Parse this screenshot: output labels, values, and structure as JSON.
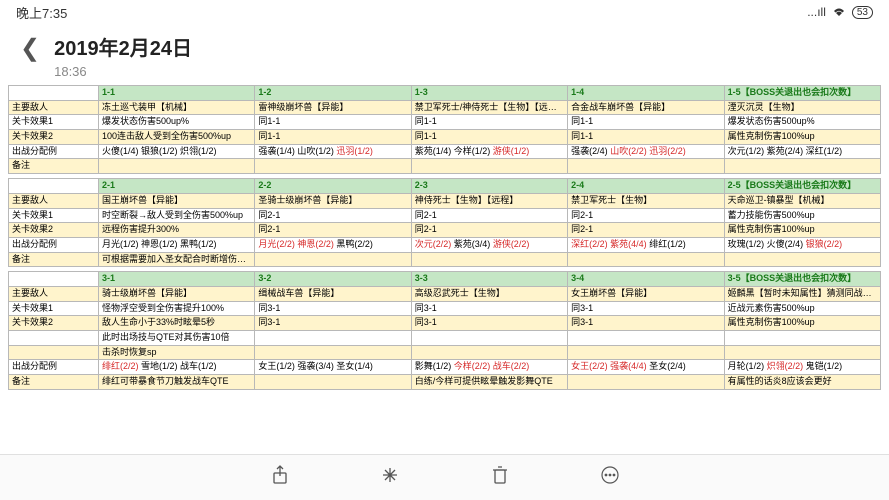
{
  "status": {
    "time": "晚上7:35",
    "signal": "...ıll",
    "wifi": "⌔",
    "battery": "53"
  },
  "header": {
    "title": "2019年2月24日",
    "subtitle": "18:36"
  },
  "labels": {
    "enemy": "主要敌人",
    "effect1": "关卡效果1",
    "effect2": "关卡效果2",
    "alloc": "出战分配例",
    "note": "备注"
  },
  "sections": [
    {
      "cols": [
        "1-1",
        "1-2",
        "1-3",
        "1-4",
        "1-5【BOSS关退出也会扣次数】"
      ],
      "rows": [
        {
          "k": "enemy",
          "style": "row-yellow",
          "cells": [
            {
              "t": "冻土巡弋装甲【机械】"
            },
            {
              "t": "雷神级崩坏兽【异能】"
            },
            {
              "t": "禁卫军死士/神侍死士【生物】【远程】"
            },
            {
              "t": "合金战车崩坏兽【异能】"
            },
            {
              "t": "湮灭沉灵【生物】"
            }
          ]
        },
        {
          "k": "effect1",
          "style": "row-pale",
          "cells": [
            {
              "t": "爆发状态伤害500up%"
            },
            {
              "t": "同1-1"
            },
            {
              "t": "同1-1"
            },
            {
              "t": "同1-1"
            },
            {
              "t": "爆发状态伤害500up%"
            }
          ]
        },
        {
          "k": "effect2",
          "style": "row-yellow",
          "cells": [
            {
              "t": "100连击敌人受到全伤害500%up"
            },
            {
              "t": "同1-1"
            },
            {
              "t": "同1-1"
            },
            {
              "t": "同1-1"
            },
            {
              "t": "属性克制伤害100%up"
            }
          ]
        },
        {
          "k": "alloc",
          "style": "row-pale",
          "cells": [
            {
              "t": "火傻(1/4) 银狼(1/2) 炽翎(1/2)"
            },
            {
              "frags": [
                {
                  "t": "强袭(1/4) 山吹(1/2) "
                },
                {
                  "t": "迅羽(1/2)",
                  "c": "txt-red"
                }
              ]
            },
            {
              "frags": [
                {
                  "t": "紫苑(1/4) 今样(1/2) "
                },
                {
                  "t": "游侠(1/2)",
                  "c": "txt-red"
                }
              ]
            },
            {
              "frags": [
                {
                  "t": "强袭(2/4) "
                },
                {
                  "t": "山吹(2/2) 迅羽(2/2)",
                  "c": "txt-red"
                }
              ]
            },
            {
              "t": "次元(1/2) 紫苑(2/4) 深红(1/2)"
            }
          ]
        },
        {
          "k": "note",
          "style": "row-yellow",
          "cells": [
            {
              "t": ""
            },
            {
              "t": ""
            },
            {
              "t": ""
            },
            {
              "t": ""
            },
            {
              "t": ""
            }
          ]
        }
      ]
    },
    {
      "cols": [
        "2-1",
        "2-2",
        "2-3",
        "2-4",
        "2-5【BOSS关退出也会扣次数】"
      ],
      "rows": [
        {
          "k": "enemy",
          "style": "row-yellow",
          "cells": [
            {
              "t": "国王崩坏兽【异能】"
            },
            {
              "t": "圣骑士级崩坏兽【异能】"
            },
            {
              "t": "神侍死士【生物】【远程】"
            },
            {
              "t": "禁卫军死士【生物】"
            },
            {
              "t": "天命巡卫-镇暴型【机械】"
            }
          ]
        },
        {
          "k": "effect1",
          "style": "row-pale",
          "cells": [
            {
              "t": "时空断裂→敌人受到全伤害500%up"
            },
            {
              "t": "同2-1"
            },
            {
              "t": "同2-1"
            },
            {
              "t": "同2-1"
            },
            {
              "t": "蓄力技能伤害500%up"
            }
          ]
        },
        {
          "k": "effect2",
          "style": "row-yellow",
          "cells": [
            {
              "t": "远程伤害提升300%"
            },
            {
              "t": "同2-1"
            },
            {
              "t": "同2-1"
            },
            {
              "t": "同2-1"
            },
            {
              "t": "属性克制伤害100%up"
            }
          ]
        },
        {
          "k": "alloc",
          "style": "row-pale",
          "cells": [
            {
              "t": "月光(1/2) 神恩(1/2) 黑鸭(1/2)"
            },
            {
              "frags": [
                {
                  "t": "月光(2/2) 神恩(2/2) ",
                  "c": "txt-red"
                },
                {
                  "t": "黑鸭(2/2)"
                }
              ]
            },
            {
              "frags": [
                {
                  "t": "次元(2/2)",
                  "c": "txt-red"
                },
                {
                  "t": " 紫苑(3/4) "
                },
                {
                  "t": "游侠(2/2)",
                  "c": "txt-red"
                }
              ]
            },
            {
              "frags": [
                {
                  "t": "深红(2/2) 紫苑(4/4) ",
                  "c": "txt-red"
                },
                {
                  "t": "绯红(1/2)"
                }
              ]
            },
            {
              "frags": [
                {
                  "t": "玫瑰(1/2) 火傻(2/4) "
                },
                {
                  "t": "银狼(2/2)",
                  "c": "txt-red"
                }
              ]
            }
          ]
        },
        {
          "k": "note",
          "style": "row-yellow",
          "cells": [
            {
              "t": "可根据需要加入圣女配合时断增伤效果"
            },
            {
              "t": ""
            },
            {
              "t": ""
            },
            {
              "t": ""
            },
            {
              "t": ""
            }
          ]
        }
      ]
    },
    {
      "cols": [
        "3-1",
        "3-2",
        "3-3",
        "3-4",
        "3-5【BOSS关退出也会扣次数】"
      ],
      "rows": [
        {
          "k": "enemy",
          "style": "row-yellow",
          "cells": [
            {
              "t": "骑士级崩坏兽【异能】"
            },
            {
              "t": "缉械战车兽【异能】"
            },
            {
              "t": "高级忍武死士【生物】"
            },
            {
              "t": "女王崩坏兽【异能】"
            },
            {
              "t": "姬麟黑【暂时未知属性】猜测同战场机制"
            }
          ]
        },
        {
          "k": "effect1",
          "style": "row-pale",
          "cells": [
            {
              "t": "怪物浮空受到全伤害提升100%"
            },
            {
              "t": "同3-1"
            },
            {
              "t": "同3-1"
            },
            {
              "t": "同3-1"
            },
            {
              "t": "近战元素伤害500%up"
            }
          ]
        },
        {
          "k": "effect2",
          "style": "row-yellow",
          "cells": [
            {
              "t": "敌人生命小于33%时眩晕5秒"
            },
            {
              "t": "同3-1"
            },
            {
              "t": "同3-1"
            },
            {
              "t": "同3-1"
            },
            {
              "t": "属性克制伤害100%up"
            }
          ]
        },
        {
          "k": "",
          "style": "row-pale",
          "cells": [
            {
              "t": "此时出场技与QTE对其伤害10倍"
            },
            {
              "t": ""
            },
            {
              "t": ""
            },
            {
              "t": ""
            },
            {
              "t": ""
            }
          ]
        },
        {
          "k": "",
          "style": "row-yellow",
          "cells": [
            {
              "t": "击杀时恢复sp"
            },
            {
              "t": ""
            },
            {
              "t": ""
            },
            {
              "t": ""
            },
            {
              "t": ""
            }
          ]
        },
        {
          "k": "alloc",
          "style": "row-pale",
          "cells": [
            {
              "frags": [
                {
                  "t": "绯红(2/2)",
                  "c": "txt-red"
                },
                {
                  "t": " 雪地(1/2) 战车(1/2)"
                }
              ]
            },
            {
              "t": "女王(1/2) 强袭(3/4) 圣女(1/4)"
            },
            {
              "frags": [
                {
                  "t": "影舞(1/2) "
                },
                {
                  "t": "今样(2/2) 战车(2/2)",
                  "c": "txt-red"
                }
              ]
            },
            {
              "frags": [
                {
                  "t": "女王(2/2) 强袭(4/4) ",
                  "c": "txt-red"
                },
                {
                  "t": "圣女(2/4)"
                }
              ]
            },
            {
              "frags": [
                {
                  "t": "月轮(1/2) "
                },
                {
                  "t": "炽翎(2/2)",
                  "c": "txt-red"
                },
                {
                  "t": " 鬼铠(1/2)"
                }
              ]
            }
          ]
        },
        {
          "k": "note",
          "style": "row-yellow",
          "cells": [
            {
              "t": "绯红可带暴食节刀触发战车QTE"
            },
            {
              "t": ""
            },
            {
              "t": "白练/今样可提供眩晕触发影舞QTE"
            },
            {
              "t": ""
            },
            {
              "t": "有属性的话炎8应该会更好"
            }
          ]
        }
      ]
    }
  ],
  "bottom_icons": [
    "share-icon",
    "sparkle-icon",
    "trash-icon",
    "more-icon"
  ]
}
